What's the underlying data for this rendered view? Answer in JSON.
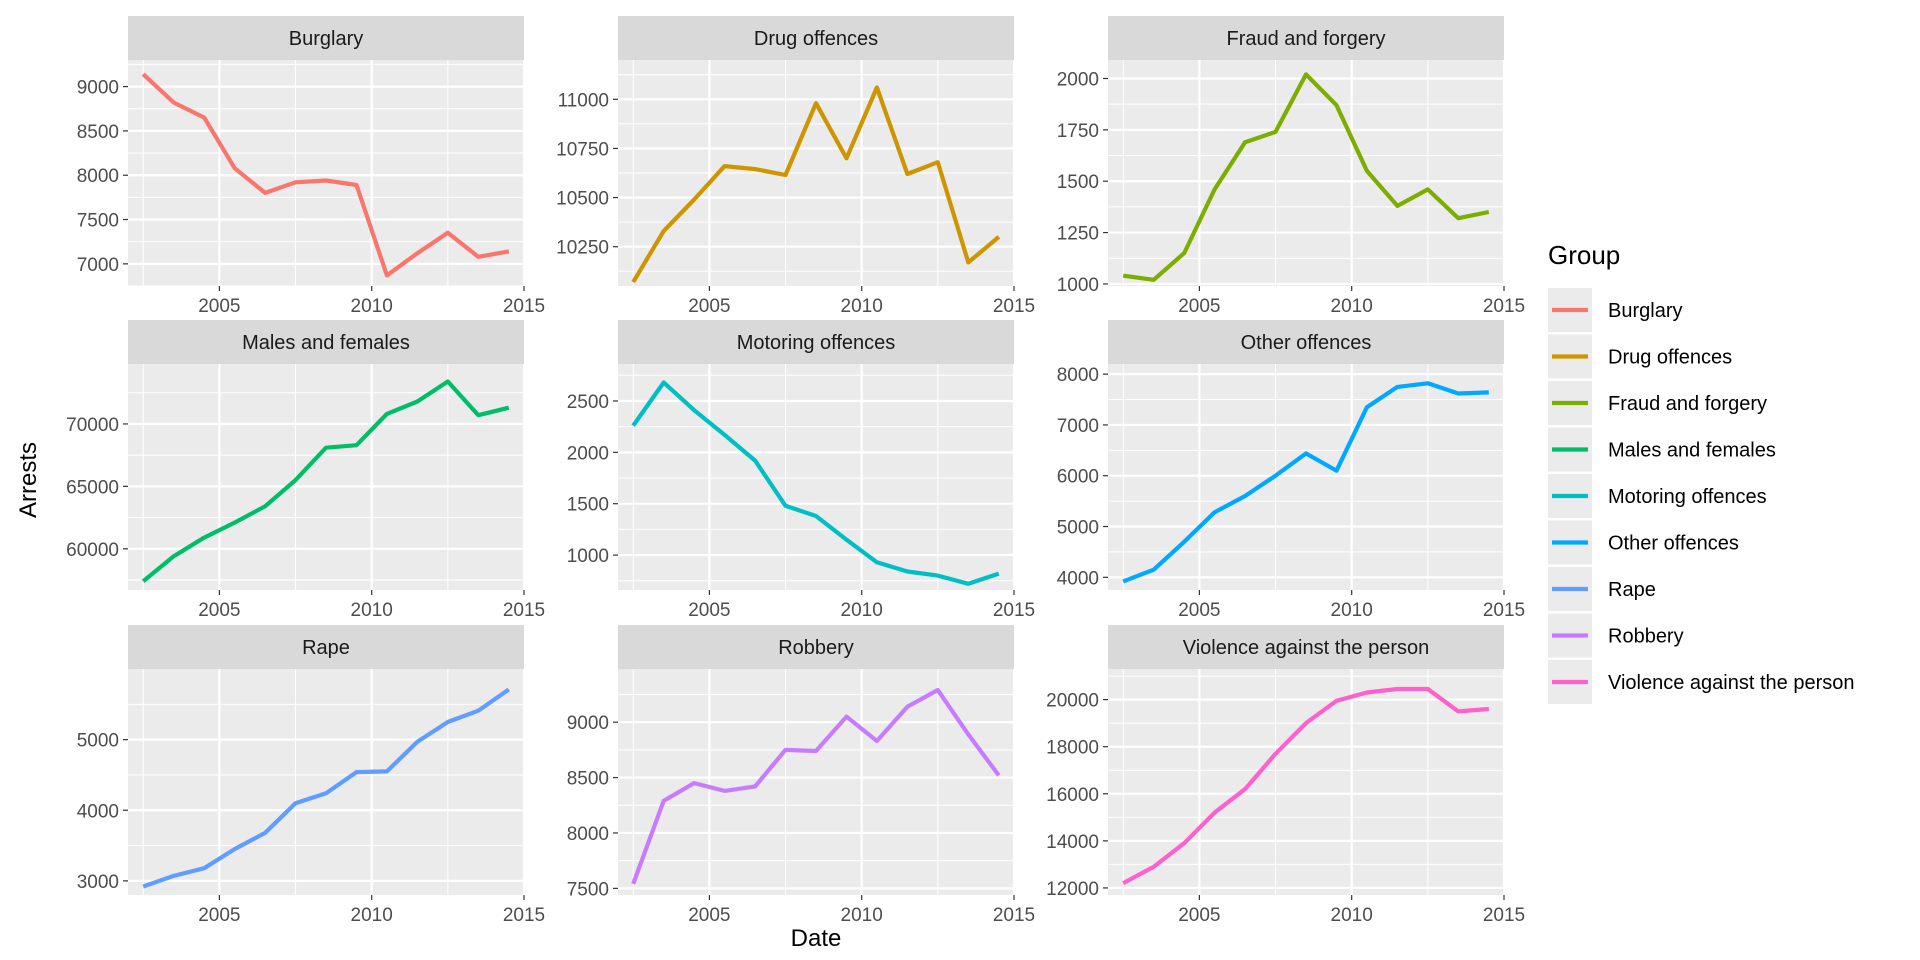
{
  "chart_data": {
    "type": "line",
    "xlabel": "Date",
    "ylabel": "Arrests",
    "legend": {
      "title": "Group",
      "position": "right"
    },
    "grid": true,
    "x_ticks": [
      2005,
      2010,
      2015
    ],
    "x": [
      2002.5,
      2003.5,
      2004.5,
      2005.5,
      2006.5,
      2007.5,
      2008.5,
      2009.5,
      2010.5,
      2011.5,
      2012.5,
      2013.5,
      2014.5
    ],
    "panels": [
      {
        "name": "Burglary",
        "color": "#F8766D",
        "ylim": [
          6750,
          9300
        ],
        "y_ticks": [
          7000,
          7500,
          8000,
          8500,
          9000
        ],
        "values": [
          9140,
          8820,
          8650,
          8080,
          7800,
          7920,
          7940,
          7890,
          6870,
          7120,
          7350,
          7080,
          7140
        ]
      },
      {
        "name": "Drug offences",
        "color": "#CD9600",
        "ylim": [
          10050,
          11200
        ],
        "y_ticks": [
          10250,
          10500,
          10750,
          11000
        ],
        "values": [
          10070,
          10330,
          10490,
          10660,
          10645,
          10615,
          10980,
          10700,
          11060,
          10620,
          10680,
          10170,
          10300
        ]
      },
      {
        "name": "Fraud and forgery",
        "color": "#7CAE00",
        "ylim": [
          990,
          2090
        ],
        "y_ticks": [
          1000,
          1250,
          1500,
          1750,
          2000
        ],
        "values": [
          1040,
          1020,
          1150,
          1460,
          1690,
          1740,
          2020,
          1870,
          1550,
          1380,
          1460,
          1320,
          1350
        ]
      },
      {
        "name": "Males and females",
        "color": "#00BE67",
        "ylim": [
          56700,
          74800
        ],
        "y_ticks": [
          60000,
          65000,
          70000
        ],
        "values": [
          57400,
          59400,
          60900,
          62100,
          63400,
          65500,
          68100,
          68300,
          70800,
          71800,
          73400,
          70700,
          71300
        ]
      },
      {
        "name": "Motoring offences",
        "color": "#00BFC4",
        "ylim": [
          660,
          2860
        ],
        "y_ticks": [
          1000,
          1500,
          2000,
          2500
        ],
        "values": [
          2260,
          2680,
          2410,
          2170,
          1920,
          1480,
          1380,
          1150,
          930,
          840,
          800,
          720,
          820
        ]
      },
      {
        "name": "Other offences",
        "color": "#00A9FF",
        "ylim": [
          3750,
          8200
        ],
        "y_ticks": [
          4000,
          5000,
          6000,
          7000,
          8000
        ],
        "values": [
          3920,
          4150,
          4700,
          5280,
          5600,
          6000,
          6440,
          6100,
          7350,
          7750,
          7820,
          7620,
          7640
        ]
      },
      {
        "name": "Rape",
        "color": "#619CFF",
        "ylim": [
          2800,
          6000
        ],
        "y_ticks": [
          3000,
          4000,
          5000
        ],
        "values": [
          2920,
          3070,
          3180,
          3450,
          3680,
          4100,
          4240,
          4540,
          4550,
          4970,
          5250,
          5410,
          5710
        ]
      },
      {
        "name": "Robbery",
        "color": "#C77CFF",
        "ylim": [
          7440,
          9480
        ],
        "y_ticks": [
          7500,
          8000,
          8500,
          9000
        ],
        "values": [
          7540,
          8290,
          8450,
          8380,
          8420,
          8750,
          8740,
          9050,
          8830,
          9140,
          9290,
          8890,
          8520
        ]
      },
      {
        "name": "Violence against the person",
        "color": "#FF61CC",
        "ylim": [
          11700,
          21300
        ],
        "y_ticks": [
          12000,
          14000,
          16000,
          18000,
          20000
        ],
        "values": [
          12200,
          12900,
          13900,
          15200,
          16200,
          17700,
          19000,
          19950,
          20300,
          20450,
          20450,
          19500,
          19600
        ]
      }
    ]
  }
}
